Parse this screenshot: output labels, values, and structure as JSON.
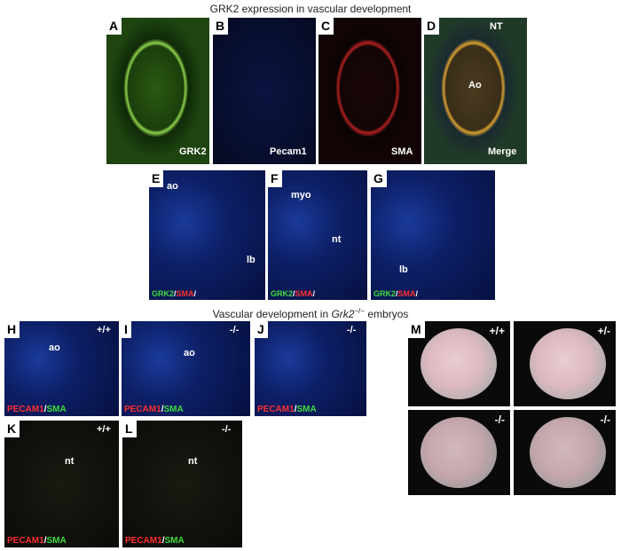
{
  "title": "GRK2 expression in vascular development",
  "subtitle": {
    "parts": [
      "Vascular development in ",
      "Grk2",
      "−/−",
      " embryos"
    ]
  },
  "panels": [
    {
      "letter": "A",
      "labels": [
        "GRK2"
      ]
    },
    {
      "letter": "B",
      "labels": [
        "Pecam1"
      ]
    },
    {
      "letter": "C",
      "labels": [
        "SMA"
      ]
    },
    {
      "letter": "D",
      "labels": [
        "NT",
        "Ao",
        "Merge"
      ]
    },
    {
      "letter": "E",
      "labels": [
        "ao",
        "lb"
      ],
      "stain": [
        {
          "text": "GRK2",
          "color": "#3ddc3d"
        },
        {
          "text": "/",
          "color": "#ffffff"
        },
        {
          "text": "SMA",
          "color": "#ff3030"
        },
        {
          "text": "/",
          "color": "#ffffff"
        }
      ]
    },
    {
      "letter": "F",
      "labels": [
        "myo",
        "nt"
      ],
      "stain": [
        {
          "text": "GRK2",
          "color": "#3ddc3d"
        },
        {
          "text": "/",
          "color": "#ffffff"
        },
        {
          "text": "SMA",
          "color": "#ff3030"
        },
        {
          "text": "/",
          "color": "#ffffff"
        }
      ]
    },
    {
      "letter": "G",
      "labels": [
        "lb"
      ],
      "stain": [
        {
          "text": "GRK2",
          "color": "#3ddc3d"
        },
        {
          "text": "/",
          "color": "#ffffff"
        },
        {
          "text": "SMA",
          "color": "#ff3030"
        },
        {
          "text": "/",
          "color": "#ffffff"
        }
      ]
    },
    {
      "letter": "H",
      "labels": [
        "+/+",
        "ao"
      ],
      "stain": [
        {
          "text": "PECAM1",
          "color": "#ff3030"
        },
        {
          "text": "/",
          "color": "#ffffff"
        },
        {
          "text": "SMA",
          "color": "#3ddc3d"
        }
      ]
    },
    {
      "letter": "I",
      "labels": [
        "-/-",
        "ao"
      ],
      "stain": [
        {
          "text": "PECAM1",
          "color": "#ff3030"
        },
        {
          "text": "/",
          "color": "#ffffff"
        },
        {
          "text": "SMA",
          "color": "#3ddc3d"
        }
      ]
    },
    {
      "letter": "J",
      "labels": [
        "-/-"
      ],
      "stain": [
        {
          "text": "PECAM1",
          "color": "#ff3030"
        },
        {
          "text": "/",
          "color": "#ffffff"
        },
        {
          "text": "SMA",
          "color": "#3ddc3d"
        }
      ]
    },
    {
      "letter": "K",
      "labels": [
        "+/+",
        "nt"
      ],
      "stain": [
        {
          "text": "PECAM1",
          "color": "#ff3030"
        },
        {
          "text": "/",
          "color": "#ffffff"
        },
        {
          "text": "SMA",
          "color": "#3ddc3d"
        }
      ]
    },
    {
      "letter": "L",
      "labels": [
        "-/-",
        "nt"
      ],
      "stain": [
        {
          "text": "PECAM1",
          "color": "#ff3030"
        },
        {
          "text": "/",
          "color": "#ffffff"
        },
        {
          "text": "SMA",
          "color": "#3ddc3d"
        }
      ]
    },
    {
      "letter": "M",
      "labels": [
        "+/+",
        "+/-",
        "-/-",
        "-/-"
      ]
    }
  ]
}
